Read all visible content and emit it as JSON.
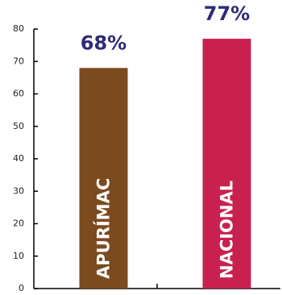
{
  "chart_data": {
    "type": "bar",
    "categories": [
      "APURÍMAC",
      "NACIONAL"
    ],
    "values": [
      68,
      77
    ],
    "value_labels": [
      "68%",
      "77%"
    ],
    "colors": [
      "#7b4a1e",
      "#c8214f"
    ],
    "ylim": [
      0,
      80
    ],
    "yticks": [
      0,
      10,
      20,
      30,
      40,
      50,
      60,
      70,
      80
    ],
    "grid": false
  }
}
